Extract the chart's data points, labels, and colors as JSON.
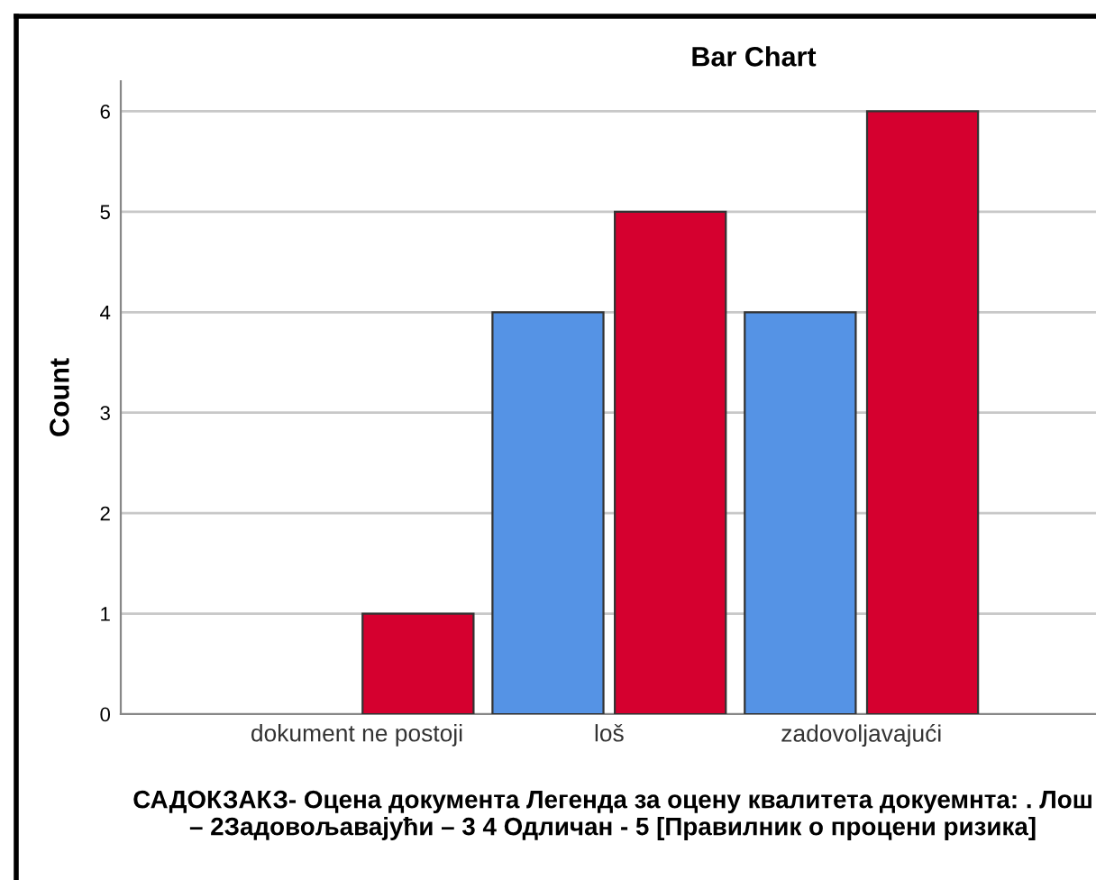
{
  "chart_data": {
    "type": "bar",
    "title": "Bar Chart",
    "xlabel": "САДОКЗАКЗ- Оцена документа Легенда за оцену квалитета докуемнта: . Лош – 2Задовољавајући – 3 4 Одличан - 5 [Правилник о процени ризика]",
    "ylabel": "Count",
    "categories": [
      "dokument ne postoji",
      "loš",
      "zadovoljavajući"
    ],
    "series": [
      {
        "color": "#5593e5",
        "values": [
          null,
          4,
          4
        ]
      },
      {
        "color": "#d5002f",
        "values": [
          1,
          5,
          6
        ]
      }
    ],
    "ylim": [
      0,
      6.3
    ],
    "yticks": [
      0,
      1,
      2,
      3,
      4,
      5,
      6
    ],
    "grid": "y"
  }
}
